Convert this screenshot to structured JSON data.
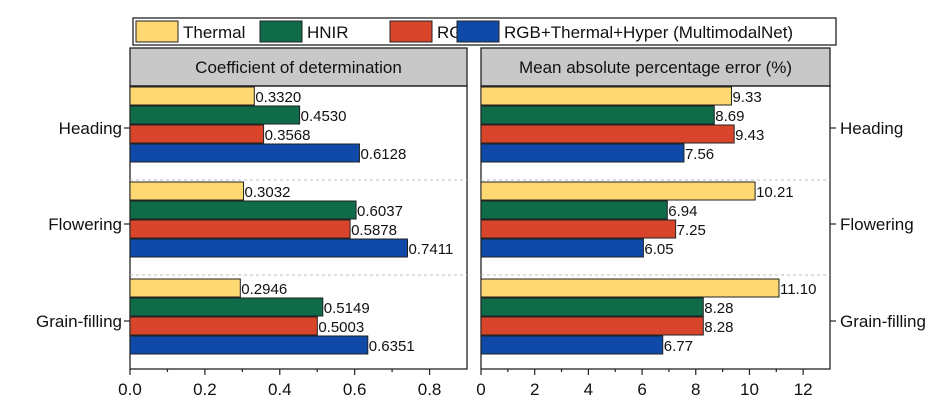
{
  "chart_data": {
    "type": "bar",
    "orientation": "horizontal",
    "categories": [
      "Heading",
      "Flowering",
      "Grain-filling"
    ],
    "series": [
      {
        "name": "Thermal",
        "color": "#fdd873"
      },
      {
        "name": "HNIR",
        "color": "#0f6b48"
      },
      {
        "name": "RGB",
        "color": "#d9452b"
      },
      {
        "name": "RGB+Thermal+Hyper (MultimodalNet)",
        "color": "#0f4aa8"
      }
    ],
    "legend_position": "top",
    "panels": [
      {
        "title": "Coefficient of determination",
        "xlim": [
          0,
          0.9
        ],
        "ticks": [
          "0.0",
          "0.2",
          "0.4",
          "0.6",
          "0.8"
        ],
        "tick_values": [
          0,
          0.2,
          0.4,
          0.6,
          0.8
        ],
        "values": [
          [
            0.332,
            0.453,
            0.3568,
            0.6128
          ],
          [
            0.3032,
            0.6037,
            0.5878,
            0.7411
          ],
          [
            0.2946,
            0.5149,
            0.5003,
            0.6351
          ]
        ],
        "labels": [
          [
            "0.3320",
            "0.4530",
            "0.3568",
            "0.6128"
          ],
          [
            "0.3032",
            "0.6037",
            "0.5878",
            "0.7411"
          ],
          [
            "0.2946",
            "0.5149",
            "0.5003",
            "0.6351"
          ]
        ]
      },
      {
        "title": "Mean absolute percentage error (%)",
        "xlim": [
          0,
          13
        ],
        "ticks": [
          "0",
          "2",
          "4",
          "6",
          "8",
          "10",
          "12"
        ],
        "tick_values": [
          0,
          2,
          4,
          6,
          8,
          10,
          12
        ],
        "values": [
          [
            9.33,
            8.69,
            9.43,
            7.56
          ],
          [
            10.21,
            6.94,
            7.25,
            6.05
          ],
          [
            11.1,
            8.28,
            8.28,
            6.77
          ]
        ],
        "labels": [
          [
            "9.33",
            "8.69",
            "9.43",
            "7.56"
          ],
          [
            "10.21",
            "6.94",
            "7.25",
            "6.05"
          ],
          [
            "11.10",
            "8.28",
            "8.28",
            "6.77"
          ]
        ]
      }
    ]
  }
}
